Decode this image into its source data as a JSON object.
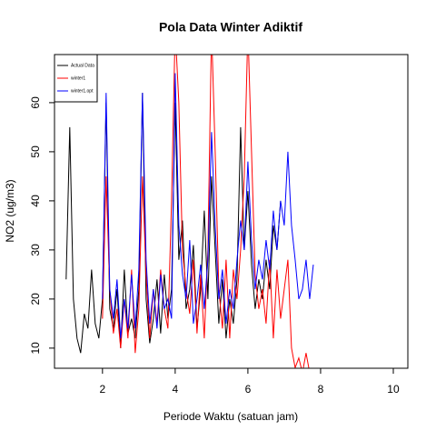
{
  "chart_data": {
    "type": "line",
    "title": "Pola Data Winter Adiktif",
    "x_label": "Periode Waktu (satuan jam)",
    "y_label": "NO2 (ug/m3)",
    "x": [
      1.0,
      1.1,
      1.2,
      1.3,
      1.4,
      1.5,
      1.6,
      1.7,
      1.8,
      1.9,
      2.0,
      2.1,
      2.2,
      2.3,
      2.4,
      2.5,
      2.6,
      2.7,
      2.8,
      2.9,
      3.0,
      3.1,
      3.2,
      3.3,
      3.4,
      3.5,
      3.6,
      3.7,
      3.8,
      3.9,
      4.0,
      4.1,
      4.2,
      4.3,
      4.4,
      4.5,
      4.6,
      4.7,
      4.8,
      4.9,
      5.0,
      5.1,
      5.2,
      5.3,
      5.4,
      5.5,
      5.6,
      5.7,
      5.8,
      5.9,
      6.0,
      6.1,
      6.2,
      6.3,
      6.4,
      6.5,
      6.6,
      6.7,
      6.8,
      6.9,
      7.0,
      7.1,
      7.2,
      7.3,
      7.4,
      7.5,
      7.6,
      7.7,
      7.8
    ],
    "series": [
      {
        "name": "Actual Data",
        "color": "#000000",
        "values": [
          24,
          55,
          20,
          12,
          9,
          17,
          14,
          26,
          15,
          12,
          20,
          60,
          18,
          14,
          22,
          10,
          26,
          13,
          16,
          12,
          22,
          62,
          20,
          11,
          16,
          24,
          13,
          25,
          16,
          22,
          60,
          28,
          36,
          18,
          22,
          31,
          14,
          22,
          38,
          20,
          45,
          30,
          15,
          24,
          12,
          20,
          15,
          24,
          55,
          30,
          42,
          27,
          18,
          24,
          20,
          28,
          22,
          35,
          30,
          40,
          null,
          null,
          null,
          null,
          null,
          null,
          null,
          null,
          null
        ]
      },
      {
        "name": "winter1",
        "color": "#ff0000",
        "values": [
          null,
          null,
          null,
          null,
          null,
          null,
          null,
          null,
          null,
          null,
          16,
          45,
          22,
          13,
          18,
          10,
          20,
          12,
          26,
          9,
          18,
          45,
          25,
          12,
          22,
          15,
          26,
          18,
          14,
          40,
          75,
          60,
          30,
          22,
          17,
          28,
          13,
          25,
          12,
          30,
          75,
          50,
          22,
          14,
          28,
          12,
          26,
          20,
          30,
          45,
          75,
          50,
          25,
          18,
          22,
          15,
          28,
          12,
          26,
          16,
          22,
          28,
          10,
          6,
          8,
          5,
          9,
          5,
          null
        ]
      },
      {
        "name": "winter1.opt",
        "color": "#0000ff",
        "values": [
          null,
          null,
          null,
          null,
          null,
          null,
          null,
          null,
          null,
          null,
          20,
          62,
          22,
          16,
          24,
          12,
          20,
          14,
          25,
          14,
          26,
          62,
          28,
          15,
          22,
          14,
          25,
          18,
          20,
          16,
          66,
          35,
          25,
          20,
          32,
          15,
          20,
          27,
          18,
          28,
          54,
          35,
          20,
          26,
          15,
          22,
          18,
          28,
          36,
          30,
          48,
          32,
          22,
          28,
          24,
          32,
          26,
          38,
          30,
          40,
          35,
          50,
          35,
          28,
          20,
          22,
          28,
          20,
          27
        ]
      }
    ],
    "xlim": [
      0.68,
      10.4
    ],
    "ylim": [
      5.9,
      69.8
    ],
    "xticks": [
      2,
      4,
      6,
      8,
      10
    ],
    "yticks": [
      10,
      20,
      30,
      40,
      50,
      60
    ],
    "legend": "top-left"
  }
}
